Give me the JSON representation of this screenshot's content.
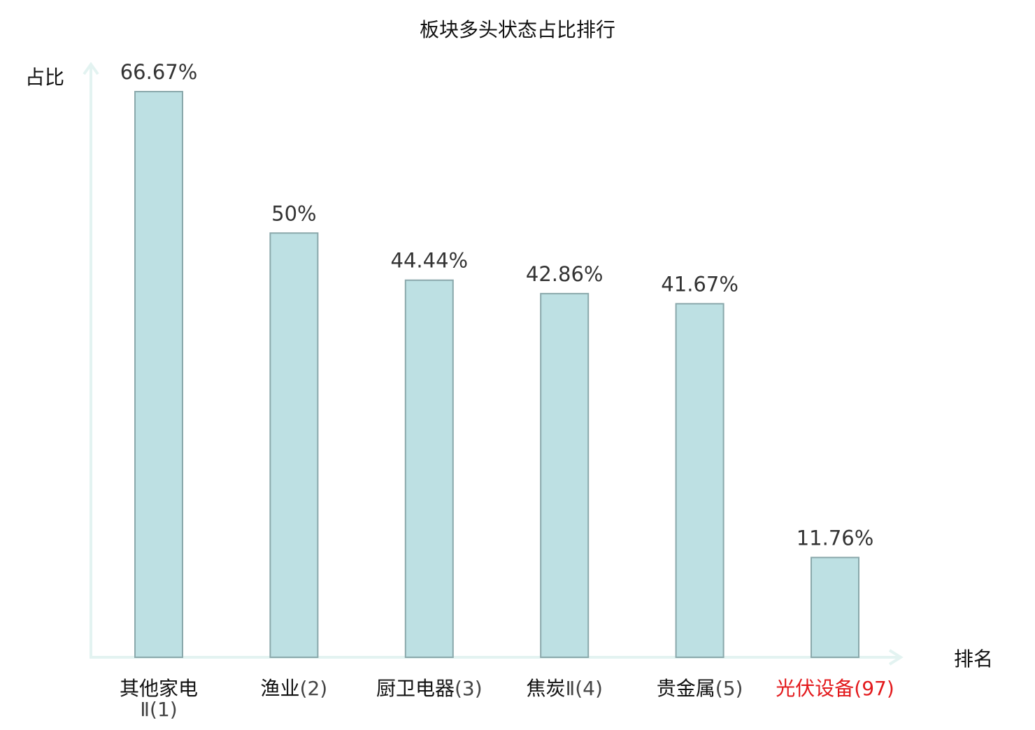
{
  "chart_data": {
    "type": "bar",
    "title": "板块多头状态占比排行",
    "ylabel": "占比",
    "xlabel": "排名",
    "categories": [
      "其他家电Ⅱ(1)",
      "渔业(2)",
      "厨卫电器(3)",
      "焦炭Ⅱ(4)",
      "贵金属(5)",
      "光伏设备(97)"
    ],
    "values": [
      66.67,
      50,
      44.44,
      42.86,
      41.67,
      11.76
    ],
    "value_labels": [
      "66.67%",
      "50%",
      "44.44%",
      "42.86%",
      "41.67%",
      "11.76%"
    ],
    "tick_labels": [
      {
        "name": "其他家电",
        "rank": "Ⅱ(1)",
        "highlight": false
      },
      {
        "name": "渔业",
        "rank": "(2)",
        "highlight": false
      },
      {
        "name": "厨卫电器",
        "rank": "(3)",
        "highlight": false
      },
      {
        "name": "焦炭",
        "rank": "Ⅱ(4)",
        "highlight": false
      },
      {
        "name": "贵金属",
        "rank": "(5)",
        "highlight": false
      },
      {
        "name": "光伏设备",
        "rank": "(97)",
        "highlight": true
      }
    ],
    "ylim": [
      0,
      66.67
    ],
    "grid": false,
    "colors": {
      "bar_fill": "#bde0e3",
      "bar_stroke": "#8aa8ab",
      "axis": "#e3f3f1",
      "text": "#111111",
      "value_text": "#333333",
      "highlight": "#e3191c"
    }
  }
}
